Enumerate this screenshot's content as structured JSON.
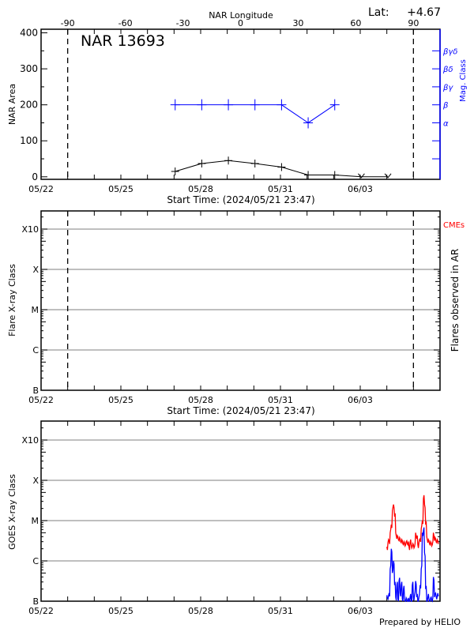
{
  "colors": {
    "axis": "#000000",
    "magnetic": "#0000ff",
    "grid": "#999999",
    "goes_long": "#ff0000",
    "goes_short": "#0000ff",
    "cme": "#ff0000"
  },
  "footer": "Prepared by HELIO",
  "chart_data": [
    {
      "type": "line",
      "title": "NAR 13693",
      "lat_label": "Lat:",
      "lat_value": "+4.67",
      "xlabel": "Start Time: (2024/05/21 23:47)",
      "top_xlabel": "NAR Longitude",
      "ylabel": "NAR Area",
      "y2label": "Mag. Class",
      "x_range": [
        "2024-05-22",
        "2024-06-06"
      ],
      "x_ticks": [
        "05/22",
        "05/25",
        "05/28",
        "05/31",
        "06/03"
      ],
      "top_ticks": [
        -90,
        -60,
        -30,
        0,
        30,
        60,
        90
      ],
      "limb_longitudes": [
        -90,
        90
      ],
      "ylim": [
        -7,
        410
      ],
      "y_ticks": [
        0,
        100,
        200,
        300,
        400
      ],
      "y2_ticks": [
        {
          "value": 50,
          "label": ""
        },
        {
          "value": 100,
          "label": ""
        },
        {
          "value": 150,
          "label": "α"
        },
        {
          "value": 200,
          "label": "β"
        },
        {
          "value": 250,
          "label": "βγ"
        },
        {
          "value": 300,
          "label": "βδ"
        },
        {
          "value": 350,
          "label": "βγδ"
        }
      ],
      "dates": [
        "2024-05-27",
        "2024-05-28",
        "2024-05-29",
        "2024-05-30",
        "2024-05-31",
        "2024-06-01",
        "2024-06-02",
        "2024-06-03",
        "2024-06-04"
      ],
      "series": [
        {
          "name": "NAR Area",
          "values": [
            15,
            37,
            45,
            37,
            27,
            5,
            5,
            0,
            0
          ]
        },
        {
          "name": "Mag. Class",
          "values": [
            "β",
            "β",
            "β",
            "β",
            "β",
            "α",
            "β",
            null,
            null
          ]
        }
      ]
    },
    {
      "type": "scatter",
      "xlabel": "Start Time: (2024/05/21 23:47)",
      "ylabel": "Flare X-ray Class",
      "y2label": "Flares observed in AR",
      "cme_label": "CMEs",
      "x_range": [
        "2024-05-22",
        "2024-06-06"
      ],
      "x_ticks": [
        "05/22",
        "05/25",
        "05/28",
        "05/31",
        "06/03"
      ],
      "y_scale": "log",
      "y_ticks": [
        "B",
        "C",
        "M",
        "X",
        "X10"
      ],
      "grid": true,
      "series": []
    },
    {
      "type": "line",
      "ylabel": "GOES X-ray Class",
      "x_range": [
        "2024-05-22",
        "2024-06-06"
      ],
      "x_ticks": [
        "05/22",
        "05/25",
        "05/28",
        "05/31",
        "06/03"
      ],
      "y_scale": "log",
      "y_ticks": [
        "B",
        "C",
        "M",
        "X",
        "X10"
      ],
      "grid": true,
      "x_start": "2024-06-04 00:00",
      "x_step_hours": 1,
      "series": [
        {
          "color": "#ff0000",
          "log_flux": [
            -5.65,
            -5.55,
            -5.5,
            -5.3,
            -5.1,
            -4.75,
            -4.6,
            -4.9,
            -5.3,
            -5.45,
            -5.4,
            -5.5,
            -5.45,
            -5.55,
            -5.5,
            -5.6,
            -5.55,
            -5.6,
            -5.5,
            -5.6,
            -5.65,
            -5.55,
            -5.6,
            -5.65,
            -5.6,
            -5.65,
            -5.3,
            -5.45,
            -5.6,
            -5.55,
            -5.45,
            -5.2,
            -5.0,
            -4.45,
            -4.6,
            -5.1,
            -5.4,
            -5.55,
            -5.5,
            -5.6,
            -5.55,
            -5.6,
            -5.3,
            -5.5,
            -5.45,
            -5.55,
            -5.5
          ]
        },
        {
          "color": "#0000ff",
          "log_flux": [
            -6.85,
            -6.95,
            -6.8,
            -6.2,
            -5.7,
            -6.3,
            -6.0,
            -6.6,
            -6.9,
            -6.6,
            -6.95,
            -6.5,
            -6.8,
            -6.6,
            -6.95,
            -6.7,
            -6.95,
            -7,
            -6.95,
            -7,
            -7,
            -6.9,
            -7,
            -6.6,
            -6.9,
            -6.85,
            -6.5,
            -6.9,
            -7,
            -6.9,
            -6.6,
            -6.2,
            -5.3,
            -5.25,
            -5.8,
            -6.7,
            -7,
            -6.9,
            -6.95,
            -7,
            -6.9,
            -7,
            -6.4,
            -6.9,
            -6.8,
            -6.95,
            -6.8
          ]
        }
      ]
    }
  ]
}
